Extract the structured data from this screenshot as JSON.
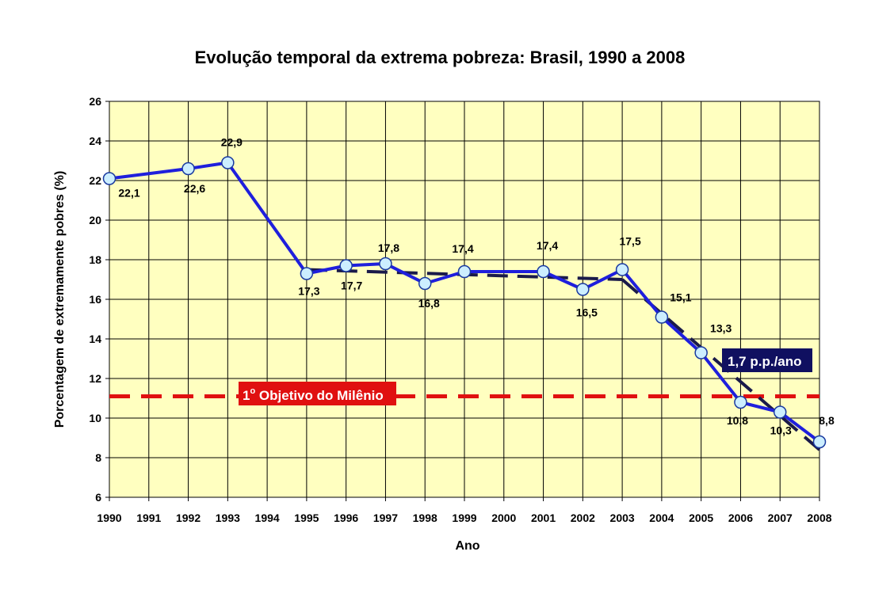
{
  "chart_data": {
    "type": "line",
    "title": "Evolução temporal da extrema pobreza: Brasil, 1990 a 2008",
    "xlabel": "Ano",
    "ylabel": "Porcentagem de extremamente pobres (%)",
    "ylim": [
      6,
      26
    ],
    "yticks": [
      "6",
      "8",
      "10",
      "12",
      "14",
      "16",
      "18",
      "20",
      "22",
      "24",
      "26"
    ],
    "categories": [
      "1990",
      "1991",
      "1992",
      "1993",
      "1994",
      "1995",
      "1996",
      "1997",
      "1998",
      "1999",
      "2000",
      "2001",
      "2002",
      "2003",
      "2004",
      "2005",
      "2006",
      "2007",
      "2008"
    ],
    "grid": true,
    "plot_background": "#ffffc0",
    "series": [
      {
        "color": "#1f1fdc",
        "marker_fill": "#cceeff",
        "points": [
          {
            "x": "1990",
            "y": 22.1,
            "label": "22,1"
          },
          {
            "x": "1992",
            "y": 22.6,
            "label": "22,6"
          },
          {
            "x": "1993",
            "y": 22.9,
            "label": "22,9"
          },
          {
            "x": "1995",
            "y": 17.3,
            "label": "17,3"
          },
          {
            "x": "1996",
            "y": 17.7,
            "label": "17,7"
          },
          {
            "x": "1997",
            "y": 17.8,
            "label": "17,8"
          },
          {
            "x": "1998",
            "y": 16.8,
            "label": "16,8"
          },
          {
            "x": "1999",
            "y": 17.4,
            "label": "17,4"
          },
          {
            "x": "2001",
            "y": 17.4,
            "label": "17,4"
          },
          {
            "x": "2002",
            "y": 16.5,
            "label": "16,5"
          },
          {
            "x": "2003",
            "y": 17.5,
            "label": "17,5"
          },
          {
            "x": "2004",
            "y": 15.1,
            "label": "15,1"
          },
          {
            "x": "2005",
            "y": 13.3,
            "label": "13,3"
          },
          {
            "x": "2006",
            "y": 10.8,
            "label": "10,8"
          },
          {
            "x": "2007",
            "y": 10.3,
            "label": "10,3"
          },
          {
            "x": "2008",
            "y": 8.8,
            "label": "8,8"
          }
        ]
      }
    ],
    "trend_lines": [
      {
        "color": "#1a1a4a",
        "points": [
          {
            "x": "1995",
            "y": 17.5
          },
          {
            "x": "2003",
            "y": 17.0
          }
        ]
      },
      {
        "color": "#1a1a4a",
        "points": [
          {
            "x": "2003",
            "y": 17.0
          },
          {
            "x": "2008",
            "y": 8.4
          }
        ]
      }
    ],
    "annotations": {
      "goal_line": {
        "y": 11.1,
        "color": "#e01010",
        "label_main": "1",
        "label_sup": "o",
        "label_rest": " Objetivo do Milênio",
        "box_color": "#e01010"
      },
      "trend_box": {
        "text": "1,7 p.p./ano",
        "box_color": "#101060"
      }
    }
  }
}
